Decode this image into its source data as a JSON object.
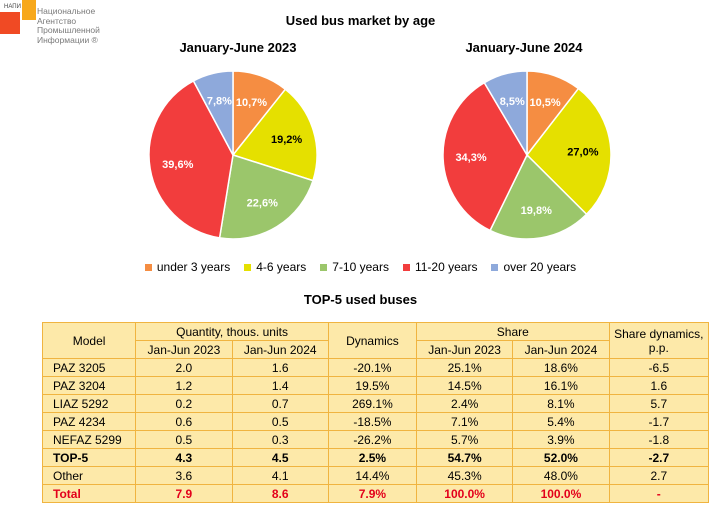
{
  "logo": {
    "small_label": "НАПИ",
    "lines": [
      "Национальное",
      "Агентство",
      "Промышленной",
      "Информации ®"
    ]
  },
  "colors": {
    "under_3": "#f58d42",
    "4_6": "#e5e000",
    "7_10": "#9bc66b",
    "11_20": "#f23d3d",
    "over_20": "#8ea9db",
    "table_bg": "#fde9a9",
    "table_border": "#f0b440",
    "total_text": "#e3001b"
  },
  "chart_data": [
    {
      "type": "pie",
      "title": "Used bus market by age",
      "subtitle": "January-June 2023",
      "categories": [
        "under 3 years",
        "4-6 years",
        "7-10 years",
        "11-20 years",
        "over 20 years"
      ],
      "values": [
        10.7,
        19.2,
        22.6,
        39.6,
        7.8
      ],
      "labels": [
        "10,7%",
        "19,2%",
        "22,6%",
        "39,6%",
        "7,8%"
      ]
    },
    {
      "type": "pie",
      "title": "Used bus market by age",
      "subtitle": "January-June 2024",
      "categories": [
        "under 3 years",
        "4-6 years",
        "7-10 years",
        "11-20 years",
        "over 20 years"
      ],
      "values": [
        10.5,
        27.0,
        19.8,
        34.3,
        8.5
      ],
      "labels": [
        "10,5%",
        "27,0%",
        "19,8%",
        "34,3%",
        "8,5%"
      ]
    },
    {
      "type": "table",
      "title": "TOP-5 used buses",
      "headers": {
        "model": "Model",
        "quantity": "Quantity, thous. units",
        "dynamics": "Dynamics",
        "share": "Share",
        "share_dyn": "Share dynamics, p.p.",
        "jan_jun_2023": "Jan-Jun 2023",
        "jan_jun_2024": "Jan-Jun 2024"
      },
      "rows": [
        {
          "model": "PAZ 3205",
          "q2023": "2.0",
          "q2024": "1.6",
          "dyn": "-20.1%",
          "s2023": "25.1%",
          "s2024": "18.6%",
          "sdyn": "-6.5"
        },
        {
          "model": "PAZ 3204",
          "q2023": "1.2",
          "q2024": "1.4",
          "dyn": "19.5%",
          "s2023": "14.5%",
          "s2024": "16.1%",
          "sdyn": "1.6"
        },
        {
          "model": "LIAZ 5292",
          "q2023": "0.2",
          "q2024": "0.7",
          "dyn": "269.1%",
          "s2023": "2.4%",
          "s2024": "8.1%",
          "sdyn": "5.7"
        },
        {
          "model": "PAZ 4234",
          "q2023": "0.6",
          "q2024": "0.5",
          "dyn": "-18.5%",
          "s2023": "7.1%",
          "s2024": "5.4%",
          "sdyn": "-1.7"
        },
        {
          "model": "NEFAZ 5299",
          "q2023": "0.5",
          "q2024": "0.3",
          "dyn": "-26.2%",
          "s2023": "5.7%",
          "s2024": "3.9%",
          "sdyn": "-1.8"
        },
        {
          "model": "TOP-5",
          "q2023": "4.3",
          "q2024": "4.5",
          "dyn": "2.5%",
          "s2023": "54.7%",
          "s2024": "52.0%",
          "sdyn": "-2.7"
        },
        {
          "model": "Other",
          "q2023": "3.6",
          "q2024": "4.1",
          "dyn": "14.4%",
          "s2023": "45.3%",
          "s2024": "48.0%",
          "sdyn": "2.7"
        },
        {
          "model": "Total",
          "q2023": "7.9",
          "q2024": "8.6",
          "dyn": "7.9%",
          "s2023": "100.0%",
          "s2024": "100.0%",
          "sdyn": "-"
        }
      ]
    }
  ]
}
